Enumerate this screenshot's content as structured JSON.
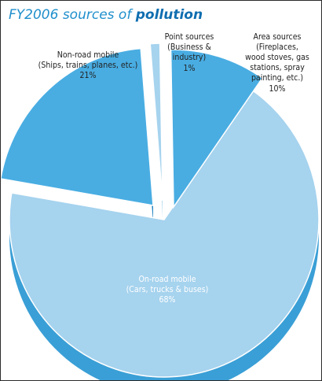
{
  "title": {
    "prefix": "FY2006 sources of",
    "emphasis": "pollution"
  },
  "chart_data": {
    "type": "pie",
    "style": "3d-exploded",
    "title": "FY2006 sources of pollution",
    "slices": [
      {
        "key": "on-road",
        "label": "On-road mobile",
        "detail": "(Cars, trucks & buses)",
        "value": 68,
        "value_label": "68%",
        "color": "#a6d3ee",
        "side": "#3a9fd6"
      },
      {
        "key": "non-road",
        "label": "Non-road mobile",
        "detail": "(Ships, trains, planes, etc.)",
        "value": 21,
        "value_label": "21%",
        "color": "#49ade2",
        "side": "#2a88c2"
      },
      {
        "key": "point",
        "label": "Point sources",
        "detail": "(Business & industry)",
        "value": 1,
        "value_label": "1%",
        "color": "#a6d3ee",
        "side": "#3a9fd6"
      },
      {
        "key": "area",
        "label": "Area sources",
        "detail": "(Fireplaces, wood stoves, gas stations, spray painting, etc.)",
        "value": 10,
        "value_label": "10%",
        "color": "#49ade2",
        "side": "#2a88c2"
      }
    ]
  }
}
